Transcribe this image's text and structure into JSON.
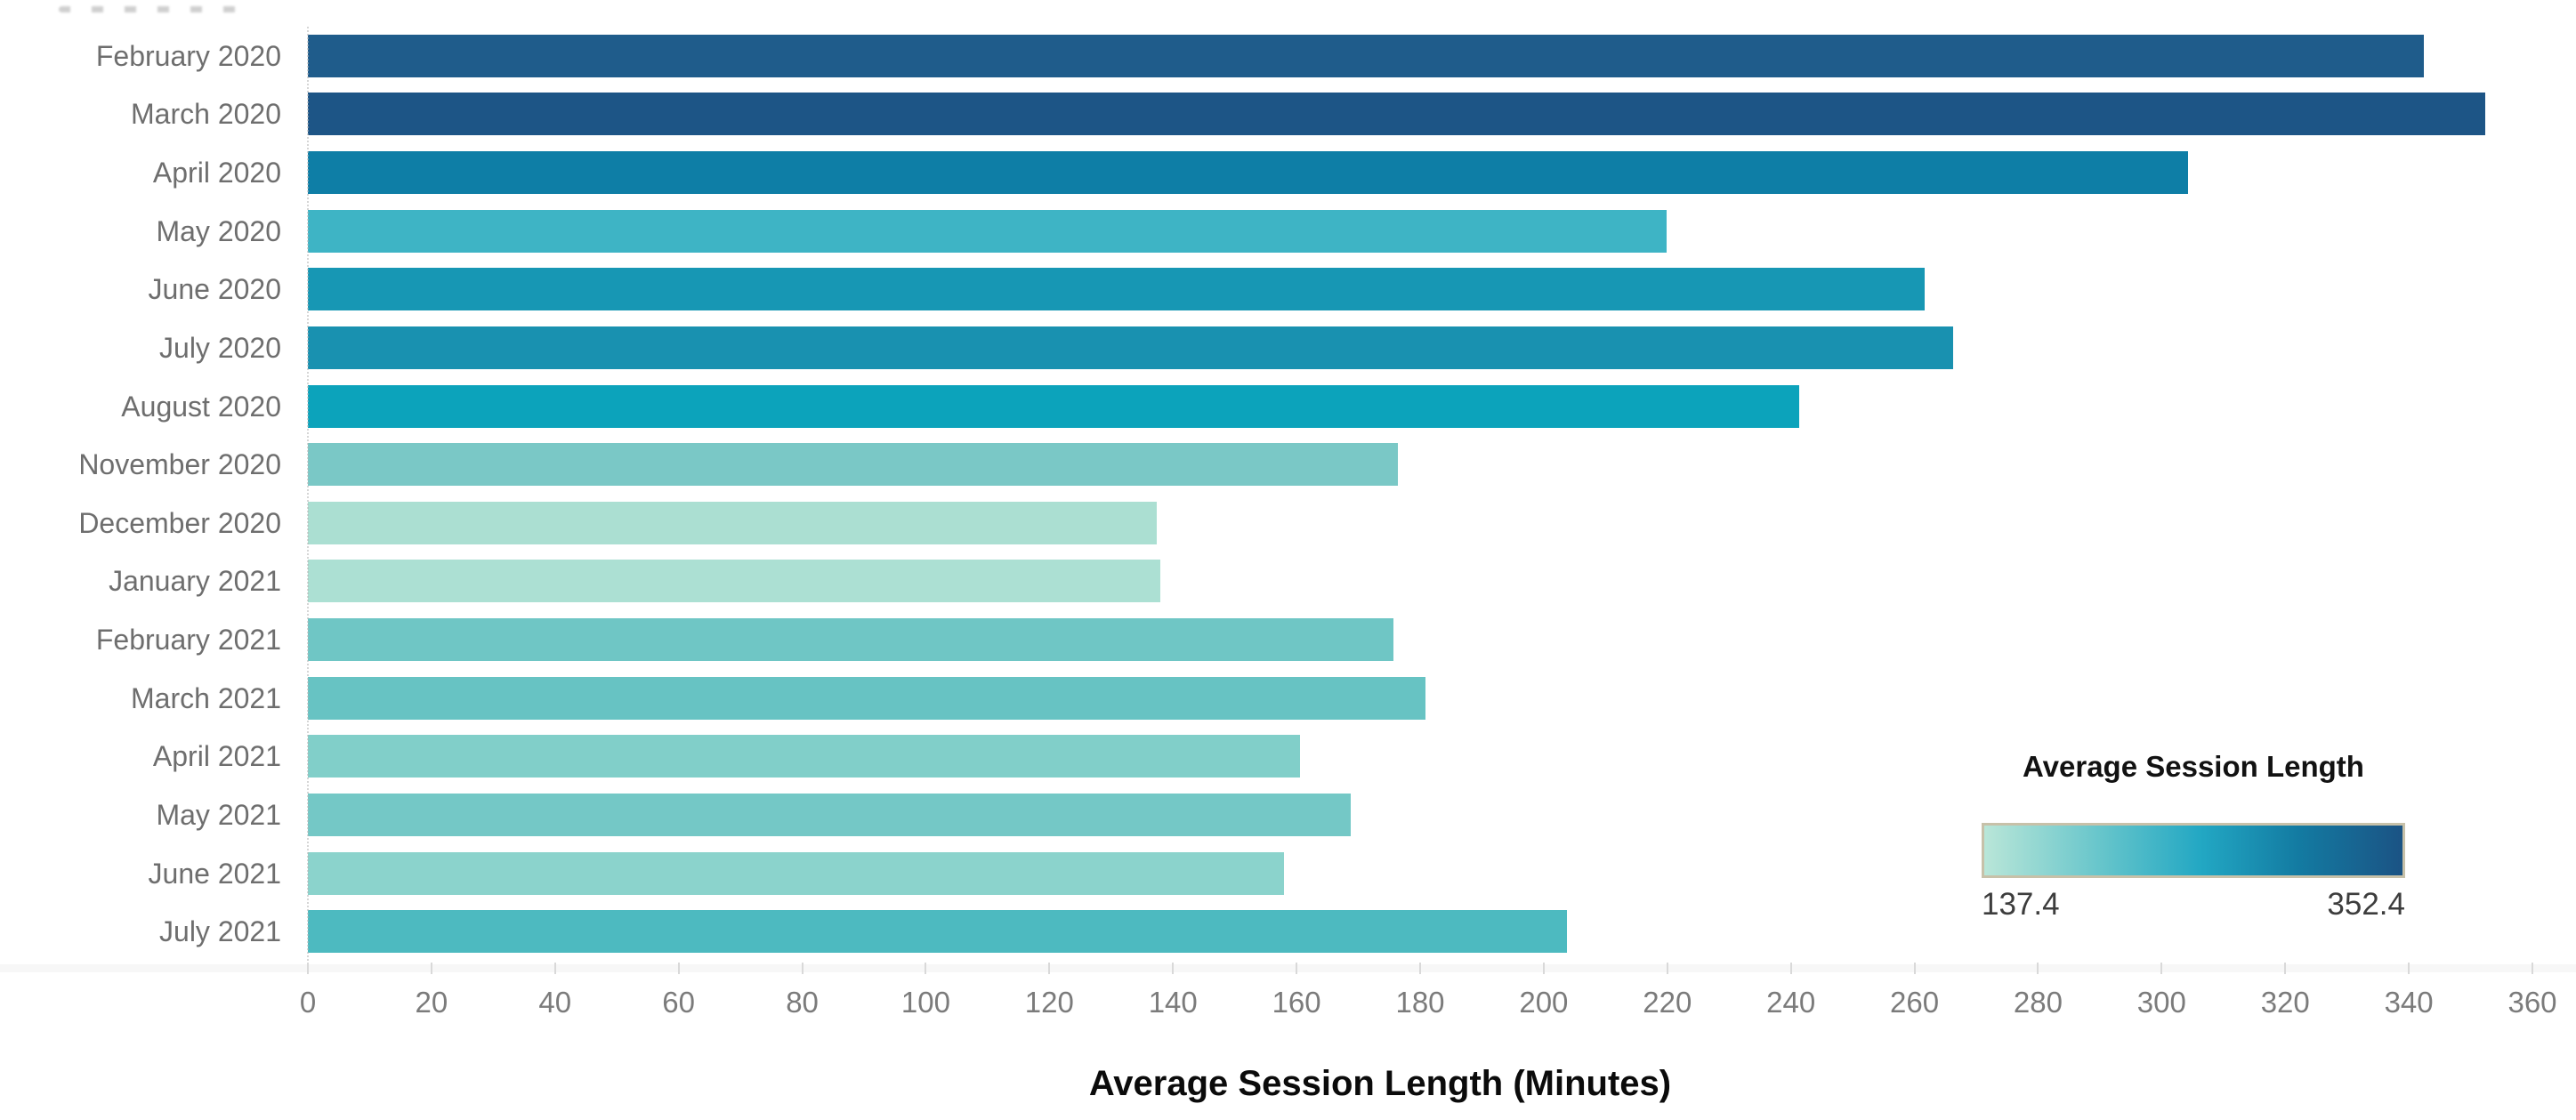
{
  "chart_data": {
    "type": "bar",
    "orientation": "horizontal",
    "title": "",
    "xlabel": "Average Session Length (Minutes)",
    "ylabel": "",
    "xlim": [
      0,
      360
    ],
    "x_tick_step": 20,
    "x_tick_labels": [
      "0",
      "20",
      "40",
      "60",
      "80",
      "100",
      "120",
      "140",
      "160",
      "180",
      "200",
      "220",
      "240",
      "260",
      "280",
      "300",
      "320",
      "340",
      "360"
    ],
    "grid": false,
    "categories": [
      "February 2020",
      "March 2020",
      "April 2020",
      "May 2020",
      "June 2020",
      "July 2020",
      "August 2020",
      "November 2020",
      "December 2020",
      "January 2021",
      "February 2021",
      "March 2021",
      "April 2021",
      "May 2021",
      "June 2021",
      "July 2021"
    ],
    "values": [
      342.4,
      352.4,
      304.2,
      219.9,
      261.6,
      266.2,
      241.4,
      176.4,
      137.4,
      137.9,
      175.7,
      180.9,
      160.6,
      168.7,
      158.0,
      203.7
    ],
    "bar_colors": [
      "#1f5c8b",
      "#1d5586",
      "#0e7ea6",
      "#3eb4c5",
      "#1797b4",
      "#1991b0",
      "#0ca3bb",
      "#7ac8c6",
      "#abdfd2",
      "#ace0d3",
      "#6fc6c5",
      "#67c3c3",
      "#81cfc9",
      "#74c8c6",
      "#8bd3cc",
      "#4dbac0"
    ],
    "legend": {
      "title": "Average Session Length",
      "min_label": "137.4",
      "max_label": "352.4",
      "gradient_stops": [
        "#b9e6d8",
        "#66c5cb",
        "#22a7c3",
        "#137ba2",
        "#1b5384"
      ],
      "border_color": "#c7c1a9",
      "position": "bottom-right"
    }
  }
}
